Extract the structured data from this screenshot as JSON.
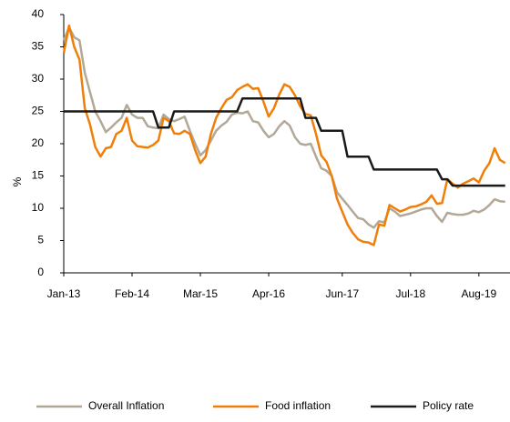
{
  "chart_data": {
    "type": "line",
    "y_label": "%",
    "categories": [
      "Jan-13",
      null,
      null,
      null,
      null,
      null,
      null,
      null,
      null,
      null,
      null,
      null,
      null,
      "Feb-14",
      null,
      null,
      null,
      null,
      null,
      null,
      null,
      null,
      null,
      null,
      null,
      null,
      "Mar-15",
      null,
      null,
      null,
      null,
      null,
      null,
      null,
      null,
      null,
      null,
      null,
      null,
      "Apr-16",
      null,
      null,
      null,
      null,
      null,
      null,
      null,
      null,
      null,
      null,
      null,
      null,
      null,
      "Jun-17",
      null,
      null,
      null,
      null,
      null,
      null,
      null,
      null,
      null,
      null,
      null,
      null,
      "Jul-18",
      null,
      null,
      null,
      null,
      null,
      null,
      null,
      null,
      null,
      null,
      null,
      null,
      "Aug-19",
      null,
      null,
      null,
      null,
      null
    ],
    "ylim": [
      0,
      40
    ],
    "yticks": [
      0,
      5,
      10,
      15,
      20,
      25,
      30,
      35,
      40
    ],
    "series": [
      {
        "name": "Overall Inflation",
        "color": "#b3a898",
        "values": [
          36,
          38,
          36.5,
          36,
          31,
          28,
          25,
          23.5,
          21.8,
          22.5,
          23.3,
          24,
          26,
          24.5,
          24,
          24,
          22.7,
          22.5,
          22.4,
          24.5,
          23.8,
          23.5,
          23.8,
          24.2,
          22,
          20,
          18.2,
          19,
          20.5,
          22,
          22.8,
          23.4,
          24.5,
          24.8,
          24.7,
          25,
          23.5,
          23.3,
          22,
          21,
          21.5,
          22.7,
          23.5,
          22.8,
          21,
          20,
          19.8,
          20,
          18,
          16.2,
          15.8,
          15,
          12.5,
          11.5,
          10.5,
          9.5,
          8.5,
          8.3,
          7.5,
          7,
          8,
          7.8,
          10,
          9.5,
          8.8,
          9,
          9.2,
          9.5,
          9.8,
          10,
          10,
          8.8,
          7.9,
          9.3,
          9.1,
          9,
          9,
          9.2,
          9.6,
          9.4,
          9.8,
          10.5,
          11.4,
          11.1,
          11
        ]
      },
      {
        "name": "Food inflation",
        "color": "#f07f09",
        "values": [
          34,
          38.3,
          35,
          33,
          25.5,
          23,
          19.5,
          18,
          19.3,
          19.5,
          21.5,
          22,
          24,
          20.5,
          19.6,
          19.5,
          19.4,
          19.8,
          20.5,
          24,
          23.5,
          21.6,
          21.5,
          22,
          21.5,
          19,
          17,
          18,
          21.5,
          24,
          25.5,
          26.8,
          27.2,
          28.3,
          28.8,
          29.2,
          28.5,
          28.6,
          26.5,
          24.2,
          25.5,
          27.6,
          29.2,
          28.8,
          27.5,
          25.8,
          24.6,
          24.4,
          21.5,
          18.2,
          17.2,
          15,
          11.5,
          9.5,
          7.5,
          6.2,
          5.2,
          4.8,
          4.7,
          4.3,
          7.5,
          7.3,
          10.5,
          10,
          9.5,
          9.8,
          10.2,
          10.3,
          10.6,
          11,
          12,
          10.7,
          10.8,
          14.5,
          13.8,
          13.2,
          13.8,
          14.2,
          14.6,
          14,
          15.8,
          17,
          19.3,
          17.5,
          17
        ]
      },
      {
        "name": "Policy rate",
        "color": "#1a1a1a",
        "values": [
          25,
          25,
          25,
          25,
          25,
          25,
          25,
          25,
          25,
          25,
          25,
          25,
          25,
          25,
          25,
          25,
          25,
          25,
          22.5,
          22.5,
          22.5,
          25,
          25,
          25,
          25,
          25,
          25,
          25,
          25,
          25,
          25,
          25,
          25,
          25,
          27,
          27,
          27,
          27,
          27,
          27,
          27,
          27,
          27,
          27,
          27,
          27,
          24,
          24,
          24,
          22,
          22,
          22,
          22,
          22,
          18,
          18,
          18,
          18,
          18,
          16,
          16,
          16,
          16,
          16,
          16,
          16,
          16,
          16,
          16,
          16,
          16,
          16,
          14.5,
          14.5,
          13.5,
          13.5,
          13.5,
          13.5,
          13.5,
          13.5,
          13.5,
          13.5,
          13.5,
          13.5,
          13.5
        ]
      }
    ]
  }
}
